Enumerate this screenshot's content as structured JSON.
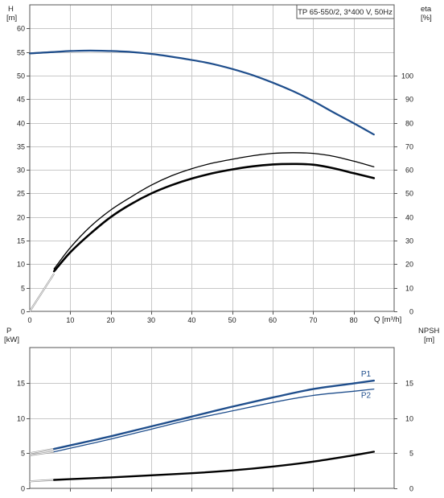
{
  "chart_data": [
    {
      "type": "line",
      "title": "TP 65-550/2, 3*400 V, 50Hz",
      "xlabel": "Q [m³/h]",
      "x_ticks": [
        "0",
        "10",
        "20",
        "30",
        "40",
        "50",
        "60",
        "70",
        "80"
      ],
      "xlim": [
        0,
        90
      ],
      "left_axis": {
        "label_line1": "H",
        "label_line2": "[m]",
        "lim": [
          0,
          65
        ],
        "ticks": [
          "0",
          "5",
          "10",
          "15",
          "20",
          "25",
          "30",
          "35",
          "40",
          "45",
          "50",
          "55",
          "60"
        ]
      },
      "right_axis": {
        "label_line1": "eta",
        "label_line2": "[%]",
        "lim": [
          0,
          130
        ],
        "ticks": [
          "0",
          "10",
          "20",
          "30",
          "40",
          "50",
          "60",
          "70",
          "80",
          "90",
          "100"
        ]
      },
      "grid": true,
      "colors": {
        "head": "#1f4e8c",
        "efficiency": "#000000",
        "extension": "#8a8a8a"
      },
      "series": [
        {
          "axis": "left",
          "color": "#1f4e8c",
          "x": [
            0,
            6,
            10,
            15,
            20,
            25,
            30,
            35,
            40,
            45,
            50,
            55,
            60,
            65,
            70,
            75,
            80,
            85
          ],
          "y": [
            54.7,
            55.0,
            55.2,
            55.3,
            55.2,
            55.0,
            54.6,
            54.0,
            53.3,
            52.5,
            51.4,
            50.1,
            48.5,
            46.7,
            44.6,
            42.2,
            39.9,
            37.5
          ]
        },
        {
          "axis": "right",
          "color": "#000000",
          "x": [
            6,
            10,
            15,
            20,
            25,
            30,
            35,
            40,
            45,
            50,
            55,
            60,
            65,
            70,
            75,
            80,
            85
          ],
          "y": [
            17,
            25,
            33,
            40,
            45.5,
            50,
            53.5,
            56.3,
            58.5,
            60.2,
            61.5,
            62.3,
            62.5,
            62.2,
            60.7,
            58.6,
            56.5
          ]
        },
        {
          "axis": "right",
          "color": "#000000",
          "x": [
            6,
            10,
            15,
            20,
            25,
            30,
            35,
            40,
            45,
            50,
            55,
            60,
            65,
            70,
            75,
            80,
            85
          ],
          "y": [
            18,
            27,
            36,
            43,
            48.5,
            53.5,
            57.5,
            60.5,
            62.8,
            64.5,
            66.0,
            67.0,
            67.3,
            67.0,
            65.8,
            63.7,
            61.3
          ]
        }
      ],
      "extensions": [
        {
          "axis": "left",
          "x": [
            0,
            6
          ],
          "y": [
            54.7,
            55.0
          ]
        },
        {
          "axis": "right",
          "x": [
            0,
            6
          ],
          "y": [
            0,
            16
          ]
        }
      ]
    },
    {
      "type": "line",
      "left_axis": {
        "label_line1": "P",
        "label_line2": "[kW]",
        "lim": [
          0,
          20
        ],
        "ticks": [
          "0",
          "5",
          "10",
          "15"
        ]
      },
      "right_axis": {
        "label_line1": "NPSH",
        "label_line2": "[m]",
        "lim": [
          0,
          20
        ],
        "ticks": [
          "0",
          "5",
          "10",
          "15"
        ]
      },
      "xlim": [
        0,
        90
      ],
      "grid": true,
      "colors": {
        "power": "#1f4e8c",
        "npsh": "#000000",
        "extension": "#8a8a8a"
      },
      "series": [
        {
          "name": "P1",
          "axis": "left",
          "color": "#1f4e8c",
          "x": [
            6,
            10,
            20,
            30,
            40,
            50,
            60,
            70,
            80,
            85
          ],
          "y": [
            5.6,
            6.1,
            7.4,
            8.8,
            10.2,
            11.6,
            12.9,
            14.1,
            14.9,
            15.3
          ]
        },
        {
          "name": "P2",
          "axis": "left",
          "color": "#1f4e8c",
          "x": [
            6,
            10,
            20,
            30,
            40,
            50,
            60,
            70,
            80,
            85
          ],
          "y": [
            5.2,
            5.7,
            7.0,
            8.4,
            9.8,
            11.0,
            12.2,
            13.2,
            13.8,
            14.1
          ]
        },
        {
          "axis": "right",
          "color": "#000000",
          "x": [
            6,
            10,
            20,
            30,
            40,
            50,
            60,
            70,
            80,
            85
          ],
          "y": [
            1.2,
            1.3,
            1.55,
            1.85,
            2.15,
            2.55,
            3.1,
            3.8,
            4.7,
            5.2
          ]
        }
      ],
      "extensions": [
        {
          "axis": "left",
          "x": [
            0,
            6
          ],
          "y": [
            5.0,
            5.6
          ]
        },
        {
          "axis": "left",
          "x": [
            0,
            6
          ],
          "y": [
            4.7,
            5.2
          ]
        },
        {
          "axis": "right",
          "x": [
            0,
            6
          ],
          "y": [
            1.0,
            1.2
          ]
        }
      ]
    }
  ]
}
